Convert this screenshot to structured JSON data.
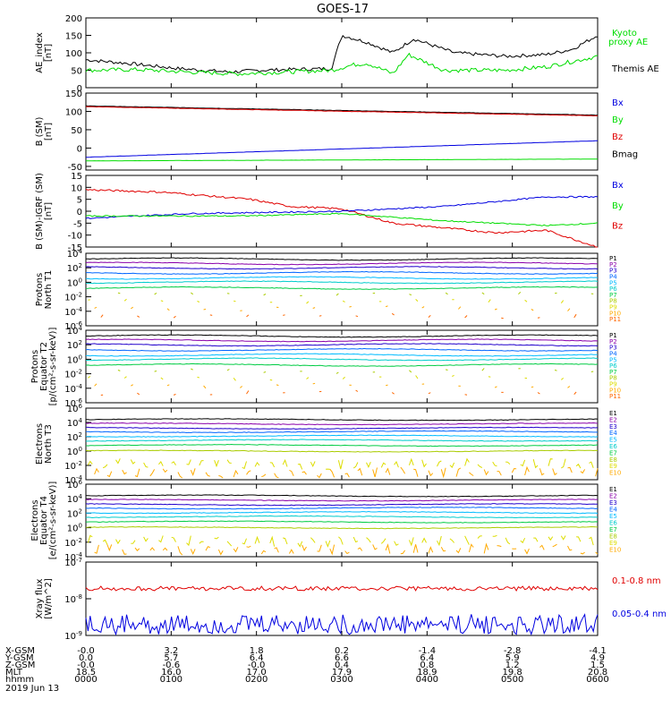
{
  "title": "GOES-17",
  "colors": {
    "black": "#000000",
    "red": "#e00000",
    "green": "#00dd00",
    "blue": "#0000e0",
    "p": [
      "#000000",
      "#8a00aa",
      "#2200cc",
      "#0066ff",
      "#00bbff",
      "#00cccc",
      "#00cc44",
      "#aacc00",
      "#dddd00",
      "#ffaa00",
      "#ff6600",
      "#dd0000"
    ]
  },
  "chart_data": [
    {
      "type": "line",
      "id": "ae",
      "ylabel": [
        "AE_index",
        "[nT]"
      ],
      "ylim": [
        0,
        200
      ],
      "yticks": [
        "0",
        "50",
        "100",
        "150",
        "200"
      ],
      "legend": [
        {
          "name": "Kyoto",
          "color": "green"
        },
        {
          "name": "proxy AE",
          "color": "green"
        },
        {
          "name": "Themis AE",
          "color": "black"
        }
      ]
    },
    {
      "type": "line",
      "id": "bsm",
      "ylabel": [
        "B (SM)",
        "[nT]"
      ],
      "ylim": [
        -60,
        150
      ],
      "yticks": [
        "-50",
        "0",
        "50",
        "100",
        "150"
      ],
      "legend": [
        {
          "name": "Bx",
          "color": "blue"
        },
        {
          "name": "By",
          "color": "green"
        },
        {
          "name": "Bz",
          "color": "red"
        },
        {
          "name": "Bmag",
          "color": "black"
        }
      ]
    },
    {
      "type": "line",
      "id": "bigrf",
      "ylabel": [
        "B (SM)-IGRF (SM)",
        "[nT]"
      ],
      "ylim": [
        -15,
        15
      ],
      "yticks": [
        "-15",
        "-10",
        "-5",
        "0",
        "5",
        "10",
        "15"
      ],
      "legend": [
        {
          "name": "Bx",
          "color": "blue"
        },
        {
          "name": "By",
          "color": "green"
        },
        {
          "name": "Bz",
          "color": "red"
        }
      ]
    },
    {
      "type": "line",
      "id": "pt1",
      "ylabel": [
        "Protons",
        "North T1"
      ],
      "ylim": [
        -6,
        4
      ],
      "yticks": [
        "10^4",
        "10^2",
        "10^0",
        "10^-2",
        "10^-4",
        "10^-6"
      ],
      "legend": [
        "P1",
        "P2",
        "P3",
        "P4",
        "P5",
        "P6",
        "P7",
        "P8",
        "P9",
        "P10",
        "P11"
      ]
    },
    {
      "type": "line",
      "id": "pt2",
      "ylabel": [
        "Protons",
        "Equator T2",
        "[p/(cm²-s-sr-keV)]"
      ],
      "ylim": [
        -6,
        4
      ],
      "yticks": [
        "10^4",
        "10^2",
        "10^0",
        "10^-2",
        "10^-4",
        "10^-6"
      ],
      "legend": [
        "P1",
        "P2",
        "P3",
        "P4",
        "P5",
        "P6",
        "P7",
        "P8",
        "P9",
        "P10",
        "P11"
      ]
    },
    {
      "type": "line",
      "id": "et3",
      "ylabel": [
        "Electrons",
        "North T3"
      ],
      "ylim": [
        -4,
        6
      ],
      "yticks": [
        "10^6",
        "10^4",
        "10^2",
        "10^0",
        "10^-2",
        "10^-4"
      ],
      "legend": [
        "E1",
        "E2",
        "E3",
        "E4",
        "E5",
        "E6",
        "E7",
        "E8",
        "E9",
        "E10"
      ]
    },
    {
      "type": "line",
      "id": "et4",
      "ylabel": [
        "Electrons",
        "Equator T4",
        "[e/(cm²-s-sr-keV)]"
      ],
      "ylim": [
        -4,
        6
      ],
      "yticks": [
        "10^6",
        "10^4",
        "10^2",
        "10^0",
        "10^-2",
        "10^-4"
      ],
      "legend": [
        "E1",
        "E2",
        "E3",
        "E4",
        "E5",
        "E6",
        "E7",
        "E8",
        "E9",
        "E10"
      ]
    },
    {
      "type": "line",
      "id": "xray",
      "ylabel": [
        "Xray flux",
        "[W/m^2]"
      ],
      "ylim": [
        -9,
        -7
      ],
      "yticks": [
        "10^-7",
        "10^-8",
        "10^-9"
      ],
      "legend": [
        {
          "name": "0.1-0.8 nm",
          "color": "red"
        },
        {
          "name": "0.05-0.4 nm",
          "color": "blue"
        }
      ]
    }
  ],
  "xaxis": {
    "rows": [
      {
        "label": "X-GSM",
        "values": [
          "-0.0",
          "3.2",
          "1.8",
          "0.2",
          "-1.4",
          "-2.8",
          "-4.1"
        ]
      },
      {
        "label": "Y-GSM",
        "values": [
          "0.0",
          "5.7",
          "6.4",
          "6.6",
          "6.4",
          "5.9",
          "4.9"
        ]
      },
      {
        "label": "Z-GSM",
        "values": [
          "-0.0",
          "-0.6",
          "-0.0",
          "0.4",
          "0.8",
          "1.2",
          "1.5"
        ]
      },
      {
        "label": "MLT",
        "values": [
          "18.5",
          "16.0",
          "17.0",
          "17.9",
          "18.9",
          "19.8",
          "20.8"
        ]
      },
      {
        "label": "hhmm",
        "values": [
          "0000",
          "0100",
          "0200",
          "0300",
          "0400",
          "0500",
          "0600"
        ]
      }
    ],
    "date": "2019 Jun 13"
  }
}
